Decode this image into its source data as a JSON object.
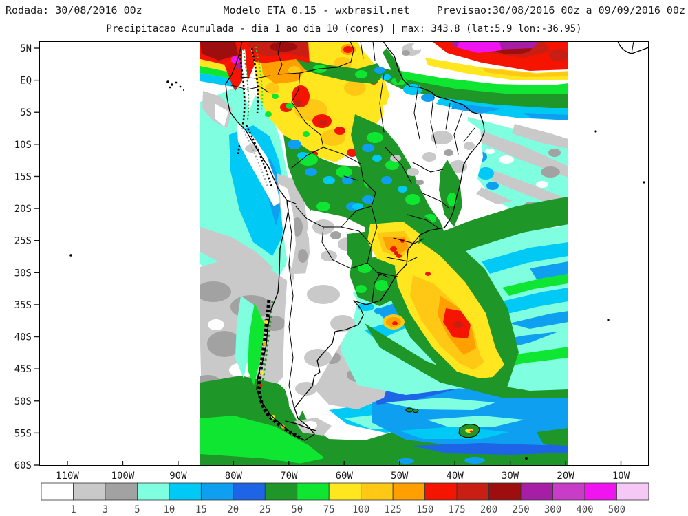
{
  "header": {
    "run": "Rodada: 30/08/2016 00z",
    "model": "Modelo ETA 0.15 - wxbrasil.net",
    "forecast": "Previsao:30/08/2016 00z a 09/09/2016 00z",
    "subtitle": "Precipitacao Acumulada - dia 1 ao dia 10 (cores) | max: 343.8 (lat:5.9 lon:-36.95)"
  },
  "axes": {
    "lat_labels": [
      "5N",
      "EQ",
      "5S",
      "10S",
      "15S",
      "20S",
      "25S",
      "30S",
      "35S",
      "40S",
      "45S",
      "50S",
      "55S",
      "60S"
    ],
    "lon_labels": [
      "110W",
      "100W",
      "90W",
      "80W",
      "70W",
      "60W",
      "50W",
      "40W",
      "30W",
      "20W",
      "10W"
    ]
  },
  "legend": {
    "values": [
      "1",
      "3",
      "5",
      "10",
      "15",
      "20",
      "25",
      "50",
      "75",
      "100",
      "125",
      "150",
      "175",
      "200",
      "250",
      "300",
      "400",
      "500"
    ],
    "colors": [
      "#FFFFFF",
      "#C9C9C9",
      "#A2A2A2",
      "#7FFFE0",
      "#00C9F5",
      "#0F9FF0",
      "#1E64E6",
      "#1E9628",
      "#0FE632",
      "#FFE61E",
      "#FFC814",
      "#FFA000",
      "#F51400",
      "#C81E14",
      "#9E0E0E",
      "#A51EA5",
      "#C83CC8",
      "#F014F0",
      "#F5C8F5"
    ]
  }
}
